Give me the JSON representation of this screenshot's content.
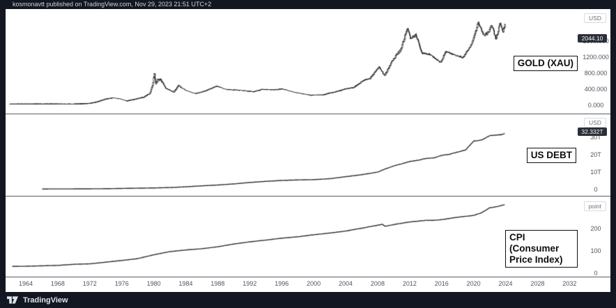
{
  "header": {
    "text": "kosmonavtt published on TradingView.com, Nov 29, 2023 21:51 UTC+2"
  },
  "footer": {
    "brand": "TradingView",
    "logo_icon": "tradingview-logo"
  },
  "colors": {
    "dark_bg": "#131722",
    "paper": "#ffffff",
    "candle": "#17191d",
    "line": "#2c2c2e",
    "badge_bg": "#2b2f38",
    "separator": "#5a5d64"
  },
  "panes": [
    {
      "label": "GOLD (XAU)",
      "unit": "USD",
      "badge": "2044.10",
      "ticks": [
        {
          "label": "1600.000",
          "value": 1600
        },
        {
          "label": "1200.000",
          "value": 1200
        },
        {
          "label": "800.000",
          "value": 800
        },
        {
          "label": "400.000",
          "value": 400
        },
        {
          "label": "0.000",
          "value": 0
        }
      ]
    },
    {
      "label": "US DEBT",
      "unit": "USD",
      "badge": "32.332T",
      "ticks": [
        {
          "label": "30T",
          "value": 30
        },
        {
          "label": "20T",
          "value": 20
        },
        {
          "label": "10T",
          "value": 10
        },
        {
          "label": "0",
          "value": 0
        }
      ]
    },
    {
      "label": "CPI (Consumer Price Index)",
      "unit": "point",
      "badge": "",
      "ticks": [
        {
          "label": "200",
          "value": 200
        },
        {
          "label": "100",
          "value": 100
        },
        {
          "label": "0",
          "value": 0
        }
      ]
    }
  ],
  "time_axis": {
    "years": [
      1964,
      1968,
      1972,
      1976,
      1980,
      1984,
      1988,
      1992,
      1996,
      2000,
      2004,
      2008,
      2012,
      2016,
      2020,
      2024,
      2028,
      2032
    ]
  },
  "chart_data": [
    {
      "type": "candlestick",
      "title": "GOLD (XAU)",
      "ylabel": "USD",
      "interval": "monthly",
      "x_range": [
        1962,
        2023.92
      ],
      "ylim": [
        0,
        2100
      ],
      "grid": false,
      "y_tick_labels": [
        "1600.000",
        "1200.000",
        "800.000",
        "400.000",
        "0.000"
      ],
      "last_price": "2044.10",
      "anchors": [
        [
          1961.9,
          35
        ],
        [
          1968,
          38
        ],
        [
          1970,
          36
        ],
        [
          1971,
          41
        ],
        [
          1972,
          50
        ],
        [
          1973,
          90
        ],
        [
          1974,
          158
        ],
        [
          1974.9,
          185
        ],
        [
          1975.7,
          165
        ],
        [
          1976.6,
          110
        ],
        [
          1977.5,
          147
        ],
        [
          1978.8,
          207
        ],
        [
          1979.5,
          300
        ],
        [
          1979.9,
          512
        ],
        [
          1980.04,
          820
        ],
        [
          1980.25,
          560
        ],
        [
          1980.7,
          670
        ],
        [
          1981.5,
          430
        ],
        [
          1982.5,
          330
        ],
        [
          1983.1,
          490
        ],
        [
          1984,
          370
        ],
        [
          1985.2,
          290
        ],
        [
          1986.5,
          360
        ],
        [
          1987.9,
          480
        ],
        [
          1989,
          395
        ],
        [
          1990.5,
          380
        ],
        [
          1992.5,
          340
        ],
        [
          1993.6,
          400
        ],
        [
          1995,
          385
        ],
        [
          1996.1,
          410
        ],
        [
          1997.5,
          325
        ],
        [
          1999.6,
          255
        ],
        [
          2001.2,
          262
        ],
        [
          2002,
          305
        ],
        [
          2003,
          350
        ],
        [
          2004,
          410
        ],
        [
          2005,
          440
        ],
        [
          2006.4,
          640
        ],
        [
          2007,
          660
        ],
        [
          2008.2,
          960
        ],
        [
          2008.85,
          730
        ],
        [
          2009.9,
          1130
        ],
        [
          2010.9,
          1390
        ],
        [
          2011.7,
          1900
        ],
        [
          2012.1,
          1660
        ],
        [
          2012.8,
          1740
        ],
        [
          2013.5,
          1300
        ],
        [
          2014.5,
          1270
        ],
        [
          2015.9,
          1060
        ],
        [
          2016.5,
          1340
        ],
        [
          2017.5,
          1260
        ],
        [
          2018.7,
          1190
        ],
        [
          2019.7,
          1500
        ],
        [
          2020.6,
          2050
        ],
        [
          2021.2,
          1750
        ],
        [
          2021.9,
          1810
        ],
        [
          2022.2,
          2040
        ],
        [
          2022.8,
          1640
        ],
        [
          2023.3,
          2030
        ],
        [
          2023.7,
          1830
        ],
        [
          2023.92,
          2044
        ]
      ]
    },
    {
      "type": "line",
      "title": "US DEBT",
      "ylabel": "USD (trillions)",
      "x_range": [
        1966.1,
        2023.92
      ],
      "ylim": [
        0,
        36
      ],
      "grid": false,
      "y_tick_labels": [
        "30T",
        "20T",
        "10T",
        "0"
      ],
      "last_price": "32.332T",
      "anchors": [
        [
          1966.1,
          0.32
        ],
        [
          1970,
          0.37
        ],
        [
          1974,
          0.48
        ],
        [
          1978,
          0.77
        ],
        [
          1980,
          0.91
        ],
        [
          1982,
          1.14
        ],
        [
          1984,
          1.57
        ],
        [
          1986,
          2.12
        ],
        [
          1988,
          2.6
        ],
        [
          1990,
          3.23
        ],
        [
          1992,
          4.06
        ],
        [
          1994,
          4.69
        ],
        [
          1996,
          5.22
        ],
        [
          1998,
          5.53
        ],
        [
          2000,
          5.67
        ],
        [
          2002,
          6.23
        ],
        [
          2004,
          7.38
        ],
        [
          2006,
          8.51
        ],
        [
          2008,
          10.02
        ],
        [
          2009,
          11.9
        ],
        [
          2010,
          13.56
        ],
        [
          2011,
          14.79
        ],
        [
          2012,
          16.07
        ],
        [
          2013,
          16.74
        ],
        [
          2014,
          17.82
        ],
        [
          2015,
          18.15
        ],
        [
          2016,
          19.57
        ],
        [
          2017,
          20.24
        ],
        [
          2018,
          21.52
        ],
        [
          2019,
          22.72
        ],
        [
          2020,
          27.75
        ],
        [
          2021,
          28.43
        ],
        [
          2022,
          30.93
        ],
        [
          2023.0,
          31.4
        ],
        [
          2023.4,
          31.45
        ],
        [
          2023.92,
          32.332
        ]
      ]
    },
    {
      "type": "line",
      "title": "CPI (Consumer Price Index)",
      "ylabel": "point",
      "x_range": [
        1962.35,
        2023.92
      ],
      "ylim": [
        0,
        330
      ],
      "grid": false,
      "y_tick_labels": [
        "200",
        "100",
        "0"
      ],
      "last_value": 307.7,
      "anchors": [
        [
          1962.35,
          30.5
        ],
        [
          1964,
          31
        ],
        [
          1966,
          32.9
        ],
        [
          1968,
          34.8
        ],
        [
          1970,
          39.8
        ],
        [
          1972,
          41.8
        ],
        [
          1974,
          49.3
        ],
        [
          1976,
          56.9
        ],
        [
          1978,
          65.2
        ],
        [
          1980,
          82.4
        ],
        [
          1982,
          96.5
        ],
        [
          1984,
          103.9
        ],
        [
          1986,
          109.6
        ],
        [
          1988,
          118.3
        ],
        [
          1990,
          130.7
        ],
        [
          1992,
          140.3
        ],
        [
          1994,
          148.2
        ],
        [
          1996,
          156.9
        ],
        [
          1998,
          163
        ],
        [
          2000,
          172.2
        ],
        [
          2002,
          179.9
        ],
        [
          2004,
          188.9
        ],
        [
          2006,
          201.6
        ],
        [
          2008.6,
          219
        ],
        [
          2008.95,
          210.2
        ],
        [
          2010,
          218
        ],
        [
          2012,
          229.6
        ],
        [
          2014,
          236.7
        ],
        [
          2015,
          237
        ],
        [
          2016,
          240
        ],
        [
          2018,
          251.1
        ],
        [
          2020,
          258.8
        ],
        [
          2021,
          271
        ],
        [
          2022,
          292.7
        ],
        [
          2023,
          299.2
        ],
        [
          2023.92,
          307.7
        ]
      ]
    }
  ]
}
